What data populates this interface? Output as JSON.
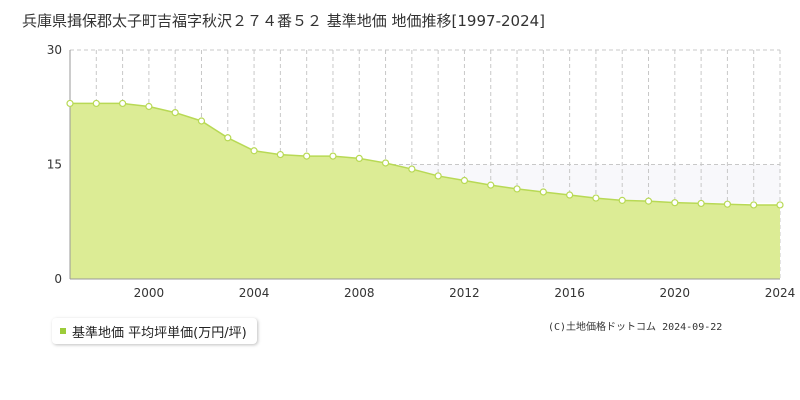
{
  "title": "兵庫県揖保郡太子町吉福字秋沢２７４番５２ 基準地価 地価推移[1997-2024]",
  "legend": {
    "label": "基準地価 平均坪単価(万円/坪)"
  },
  "copyright": "(C)土地価格ドットコム 2024-09-22",
  "colors": {
    "fill": "#dcec95",
    "line": "#b8d955",
    "point_fill": "#ffffff",
    "swatch": "#9ccc3a"
  },
  "chart_data": {
    "type": "area",
    "title": "兵庫県揖保郡太子町吉福字秋沢２７４番５２ 基準地価 地価推移[1997-2024]",
    "xlabel": "",
    "ylabel": "",
    "xlim": [
      1997,
      2024
    ],
    "ylim": [
      0,
      30
    ],
    "yticks": [
      0,
      15,
      30
    ],
    "xticks": [
      2000,
      2004,
      2008,
      2012,
      2016,
      2020,
      2024
    ],
    "grid": true,
    "legend_position": "bottom-left",
    "series": [
      {
        "name": "基準地価 平均坪単価(万円/坪)",
        "x": [
          1997,
          1998,
          1999,
          2000,
          2001,
          2002,
          2003,
          2004,
          2005,
          2006,
          2007,
          2008,
          2009,
          2010,
          2011,
          2012,
          2013,
          2014,
          2015,
          2016,
          2017,
          2018,
          2019,
          2020,
          2021,
          2022,
          2023,
          2024
        ],
        "values": [
          23.0,
          23.0,
          23.0,
          22.6,
          21.8,
          20.7,
          18.5,
          16.8,
          16.3,
          16.1,
          16.1,
          15.8,
          15.2,
          14.4,
          13.5,
          12.9,
          12.3,
          11.8,
          11.4,
          11.0,
          10.6,
          10.3,
          10.2,
          10.0,
          9.9,
          9.8,
          9.7,
          9.7
        ]
      }
    ]
  }
}
